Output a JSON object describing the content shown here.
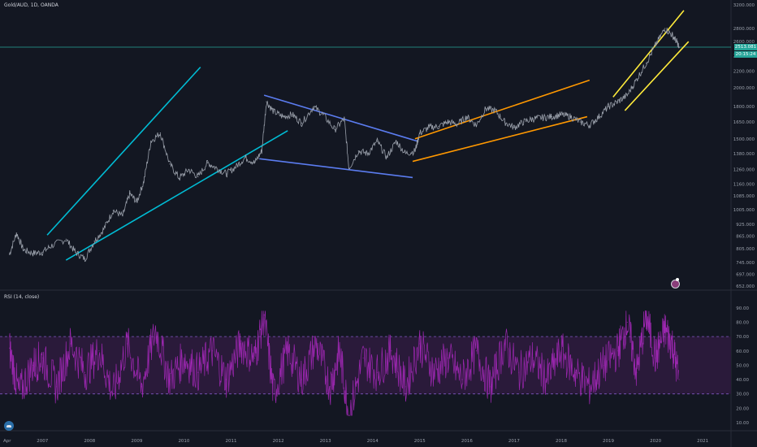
{
  "header": {
    "symbol_title": "Gold/AUD, 1D, OANDA",
    "rsi_title": "RSI (14, close)"
  },
  "price_tags": {
    "last_price": "2513.081",
    "countdown": "20:15:24"
  },
  "icons": {
    "logo": "tradingview-logo-icon",
    "alert": "alert-badge-icon"
  },
  "colors": {
    "background": "#131722",
    "grid": "#1e222d",
    "price": "#9aa0ab",
    "rsi": "#9c27b0",
    "rsi_band": "#2a1a3a",
    "cyan": "#00bcd4",
    "blue": "#5b7cf0",
    "orange": "#ff9800",
    "yellow": "#ffeb3b",
    "price_line": "#26a69a"
  },
  "chart_data": [
    {
      "type": "line",
      "title": "Gold/AUD, 1D, OANDA",
      "scale": "log",
      "ylim": [
        652,
        3200
      ],
      "y_ticks": [
        "3200.000",
        "2800.000",
        "2600.000",
        "2400.000",
        "2200.000",
        "2000.000",
        "1800.000",
        "1650.000",
        "1500.000",
        "1380.000",
        "1260.000",
        "1160.000",
        "1085.000",
        "1005.000",
        "925.000",
        "865.000",
        "805.000",
        "745.000",
        "697.000",
        "652.000"
      ],
      "x_ticks": [
        "Apr",
        "2007",
        "2008",
        "2009",
        "2010",
        "2011",
        "2012",
        "2013",
        "2014",
        "2015",
        "2016",
        "2017",
        "2018",
        "2019",
        "2020",
        "2021"
      ],
      "series": [
        {
          "x": [
            2006.3,
            2006.45,
            2006.6,
            2006.8,
            2007.0,
            2007.2,
            2007.5,
            2007.7,
            2007.9,
            2008.1,
            2008.3,
            2008.5,
            2008.7,
            2008.85,
            2009.0,
            2009.15,
            2009.3,
            2009.5,
            2009.7,
            2009.9,
            2010.1,
            2010.3,
            2010.5,
            2010.7,
            2010.9,
            2011.1,
            2011.3,
            2011.5,
            2011.65,
            2011.75,
            2011.9,
            2012.1,
            2012.3,
            2012.5,
            2012.75,
            2012.95,
            2013.2,
            2013.4,
            2013.5,
            2013.7,
            2013.9,
            2014.1,
            2014.3,
            2014.5,
            2014.7,
            2014.9,
            2015.0,
            2015.2,
            2015.4,
            2015.6,
            2015.8,
            2016.0,
            2016.2,
            2016.4,
            2016.6,
            2016.8,
            2017.0,
            2017.2,
            2017.4,
            2017.6,
            2017.8,
            2018.0,
            2018.2,
            2018.4,
            2018.6,
            2018.8,
            2019.0,
            2019.2,
            2019.4,
            2019.6,
            2019.8,
            2020.0,
            2020.2,
            2020.35,
            2020.45,
            2020.5
          ],
          "y": [
            780,
            880,
            800,
            785,
            790,
            820,
            850,
            790,
            760,
            840,
            900,
            1000,
            970,
            1100,
            1050,
            1180,
            1480,
            1550,
            1300,
            1200,
            1260,
            1210,
            1310,
            1270,
            1230,
            1280,
            1350,
            1310,
            1400,
            1850,
            1750,
            1700,
            1720,
            1640,
            1800,
            1720,
            1580,
            1680,
            1270,
            1400,
            1380,
            1480,
            1350,
            1480,
            1380,
            1400,
            1550,
            1600,
            1610,
            1650,
            1630,
            1700,
            1620,
            1780,
            1760,
            1650,
            1600,
            1650,
            1680,
            1690,
            1700,
            1720,
            1700,
            1650,
            1620,
            1700,
            1800,
            1850,
            1920,
            2100,
            2300,
            2550,
            2800,
            2700,
            2600,
            2513
          ]
        }
      ]
    },
    {
      "type": "line",
      "title": "RSI (14, close)",
      "ylim": [
        10,
        95
      ],
      "y_ticks": [
        "90.00",
        "80.00",
        "70.00",
        "60.00",
        "50.00",
        "40.00",
        "30.00",
        "20.00",
        "10.00"
      ],
      "bands": [
        30,
        70
      ],
      "series": [
        {
          "x": [
            2006.3,
            2006.5,
            2006.8,
            2007.0,
            2007.3,
            2007.6,
            2007.9,
            2008.2,
            2008.5,
            2008.8,
            2009.1,
            2009.4,
            2009.7,
            2010.0,
            2010.3,
            2010.6,
            2010.9,
            2011.2,
            2011.5,
            2011.7,
            2011.9,
            2012.2,
            2012.5,
            2012.8,
            2013.1,
            2013.3,
            2013.5,
            2013.8,
            2014.1,
            2014.4,
            2014.7,
            2015.0,
            2015.3,
            2015.6,
            2015.9,
            2016.2,
            2016.5,
            2016.8,
            2017.1,
            2017.4,
            2017.7,
            2018.0,
            2018.3,
            2018.6,
            2018.9,
            2019.2,
            2019.4,
            2019.6,
            2019.8,
            2020.0,
            2020.2,
            2020.35,
            2020.5
          ],
          "y": [
            62,
            30,
            50,
            55,
            35,
            65,
            45,
            60,
            30,
            65,
            35,
            75,
            40,
            55,
            45,
            60,
            40,
            65,
            55,
            85,
            30,
            60,
            40,
            65,
            35,
            60,
            15,
            55,
            45,
            60,
            35,
            65,
            45,
            55,
            40,
            60,
            35,
            65,
            45,
            55,
            40,
            60,
            45,
            35,
            50,
            60,
            80,
            45,
            85,
            55,
            75,
            65,
            40
          ]
        }
      ]
    }
  ]
}
